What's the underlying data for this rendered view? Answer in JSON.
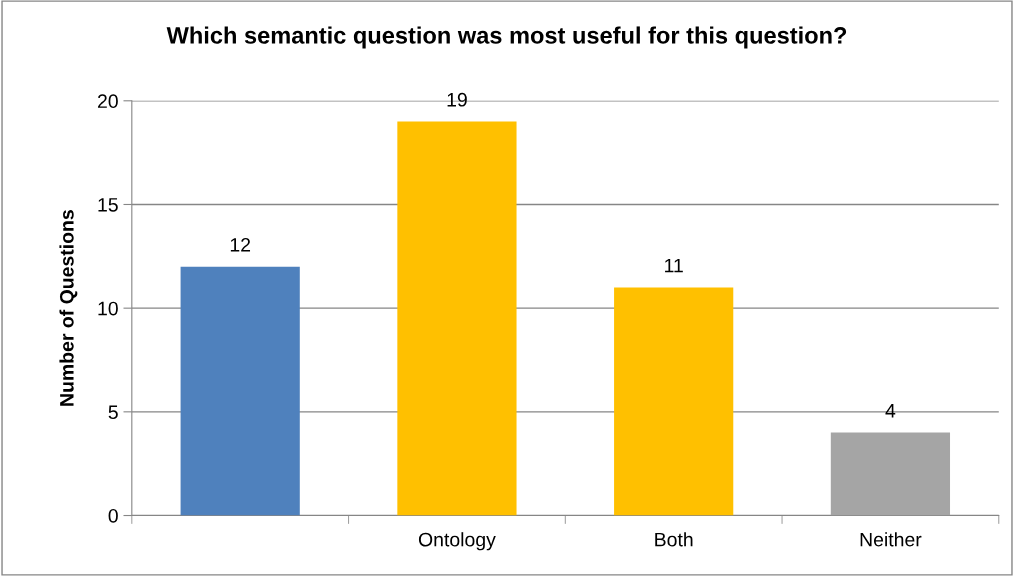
{
  "chart_data": {
    "type": "bar",
    "title": "Which semantic question was most useful for this question?",
    "ylabel": "Number of Questions",
    "categories": [
      null,
      "Ontology",
      "Both",
      "Neither"
    ],
    "values": [
      12,
      19,
      11,
      4
    ],
    "colors": [
      "#4f81bd",
      "#ffc000",
      "#ffc000",
      "#a5a5a5"
    ],
    "ylim": [
      0,
      20
    ],
    "yticks": [
      0,
      5,
      10,
      15,
      20
    ],
    "grid": "y",
    "data_labels": true
  }
}
